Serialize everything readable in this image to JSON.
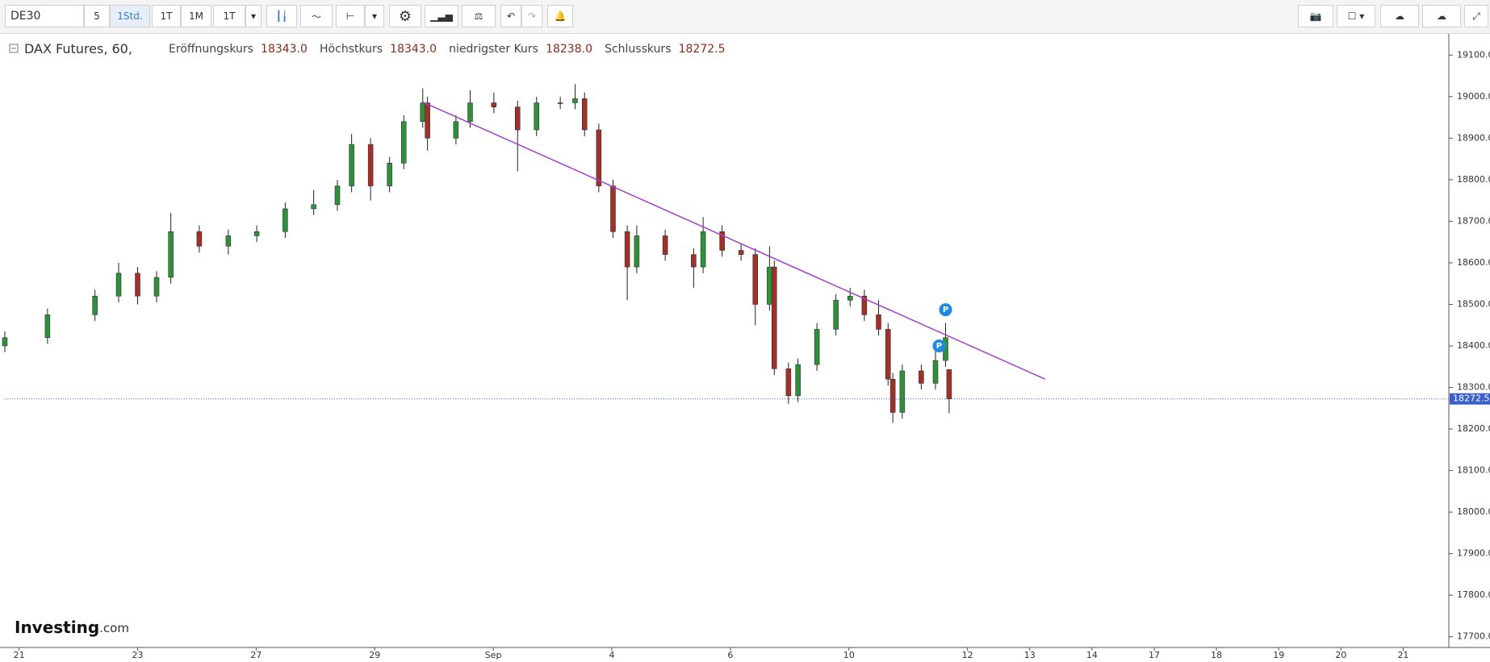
{
  "toolbar": {
    "symbol": "DE30",
    "intervals": [
      "5",
      "1Std.",
      "1T",
      "1M",
      "1T"
    ]
  },
  "legend": {
    "name": "DAX Futures, 60,",
    "open_label": "Eröffnungskurs",
    "open": "18343.0",
    "high_label": "Höchstkurs",
    "high": "18343.0",
    "low_label": "niedrigster Kurs",
    "low": "18238.0",
    "close_label": "Schlusskurs",
    "close": "18272.5"
  },
  "logo": {
    "name": "Investing",
    "suffix": ".com"
  },
  "chart_data": {
    "type": "candlestick",
    "x": [
      -0.24,
      0.48,
      1.28,
      1.68,
      2.0,
      2.32,
      2.56,
      3.04,
      3.53,
      4.01,
      4.49,
      4.97,
      5.37,
      5.61,
      5.93,
      6.25,
      6.49,
      6.81,
      6.89,
      7.37,
      7.61,
      8.01,
      8.41,
      8.73,
      9.13,
      9.38,
      9.54,
      9.78,
      10.02,
      10.26,
      10.42,
      10.9,
      11.38,
      11.54,
      11.86,
      12.18,
      12.42,
      12.66,
      12.74,
      12.98,
      13.14,
      13.46,
      13.78,
      14.02,
      14.26,
      14.5,
      14.66,
      14.74,
      14.9,
      15.22,
      15.46,
      15.63,
      15.69
    ],
    "open": [
      18400,
      18420,
      18475,
      18520,
      18575,
      18520,
      18565,
      18675,
      18640,
      18665,
      18675,
      18730,
      18740,
      18785,
      18885,
      18785,
      18840,
      18940,
      18985,
      18900,
      18940,
      18985,
      18975,
      18920,
      18985,
      18985,
      18995,
      18920,
      18785,
      18675,
      18590,
      18665,
      18620,
      18590,
      18675,
      18630,
      18620,
      18500,
      18590,
      18345,
      18280,
      18355,
      18440,
      18510,
      18520,
      18475,
      18440,
      18320,
      18240,
      18340,
      18310,
      18365,
      18343
    ],
    "high": [
      18435,
      18490,
      18535,
      18600,
      18590,
      18580,
      18720,
      18690,
      18680,
      18690,
      18745,
      18775,
      18800,
      18910,
      18900,
      18855,
      18955,
      19020,
      19000,
      18955,
      19015,
      19010,
      18990,
      19000,
      19000,
      19030,
      19010,
      18935,
      18800,
      18690,
      18690,
      18680,
      18635,
      18710,
      18690,
      18645,
      18635,
      18640,
      18605,
      18360,
      18370,
      18455,
      18525,
      18540,
      18535,
      18510,
      18455,
      18335,
      18355,
      18355,
      18390,
      18455,
      18343
    ],
    "low": [
      18385,
      18405,
      18460,
      18505,
      18500,
      18505,
      18550,
      18625,
      18620,
      18650,
      18660,
      18715,
      18725,
      18770,
      18750,
      18770,
      18825,
      18925,
      18870,
      18885,
      18925,
      18960,
      18820,
      18905,
      18970,
      18970,
      18905,
      18770,
      18660,
      18510,
      18575,
      18605,
      18540,
      18575,
      18615,
      18605,
      18450,
      18485,
      18330,
      18260,
      18265,
      18340,
      18425,
      18495,
      18460,
      18425,
      18305,
      18215,
      18225,
      18295,
      18295,
      18350,
      18238
    ],
    "close": [
      18420,
      18475,
      18520,
      18575,
      18520,
      18565,
      18675,
      18640,
      18665,
      18675,
      18730,
      18740,
      18785,
      18885,
      18785,
      18840,
      18940,
      18985,
      18900,
      18940,
      18985,
      18975,
      18920,
      18985,
      18985,
      18995,
      18920,
      18785,
      18675,
      18590,
      18665,
      18620,
      18590,
      18675,
      18630,
      18620,
      18500,
      18590,
      18345,
      18280,
      18355,
      18440,
      18510,
      18520,
      18475,
      18440,
      18320,
      18240,
      18340,
      18310,
      18365,
      18420,
      18272.5
    ],
    "up_color": "#2f8f3a",
    "down_color": "#a0302a",
    "xlim": [
      -0.24,
      24.12
    ],
    "xticks": [
      {
        "value": 0,
        "label": "21"
      },
      {
        "value": 2,
        "label": "23"
      },
      {
        "value": 4,
        "label": "27"
      },
      {
        "value": 6,
        "label": "29"
      },
      {
        "value": 8,
        "label": "Sep"
      },
      {
        "value": 10,
        "label": "4"
      },
      {
        "value": 12,
        "label": "6"
      },
      {
        "value": 14,
        "label": "10"
      },
      {
        "value": 16,
        "label": "12"
      },
      {
        "value": 17.05,
        "label": "13"
      },
      {
        "value": 18.1,
        "label": "14"
      },
      {
        "value": 19.15,
        "label": "17"
      },
      {
        "value": 20.2,
        "label": "18"
      },
      {
        "value": 21.25,
        "label": "19"
      },
      {
        "value": 22.3,
        "label": "20"
      },
      {
        "value": 23.35,
        "label": "21"
      }
    ],
    "ylim": [
      17680,
      19120
    ],
    "yticks": [
      {
        "value": 17700,
        "label": "17700.0"
      },
      {
        "value": 17800,
        "label": "17800.0"
      },
      {
        "value": 17900,
        "label": "17900.0"
      },
      {
        "value": 18000,
        "label": "18000.0"
      },
      {
        "value": 18100,
        "label": "18100.0"
      },
      {
        "value": 18200,
        "label": "18200.0"
      },
      {
        "value": 18300,
        "label": "18300.0"
      },
      {
        "value": 18400,
        "label": "18400.0"
      },
      {
        "value": 18500,
        "label": "18500.0"
      },
      {
        "value": 18600,
        "label": "18600.0"
      },
      {
        "value": 18700,
        "label": "18700.0"
      },
      {
        "value": 18800,
        "label": "18800.0"
      },
      {
        "value": 18900,
        "label": "18900.0"
      },
      {
        "value": 19000,
        "label": "19000.0"
      },
      {
        "value": 19100,
        "label": "19100.0"
      }
    ],
    "trendline": {
      "x": [
        6.81,
        17.31
      ],
      "y": [
        18987,
        18320
      ],
      "color": "#a33fd0"
    },
    "markers": {
      "label": "P",
      "x": [
        15.63,
        15.52
      ],
      "y": [
        18487,
        18400
      ],
      "color": "#1e88e5"
    },
    "last_color": "#3a5fc8"
  }
}
